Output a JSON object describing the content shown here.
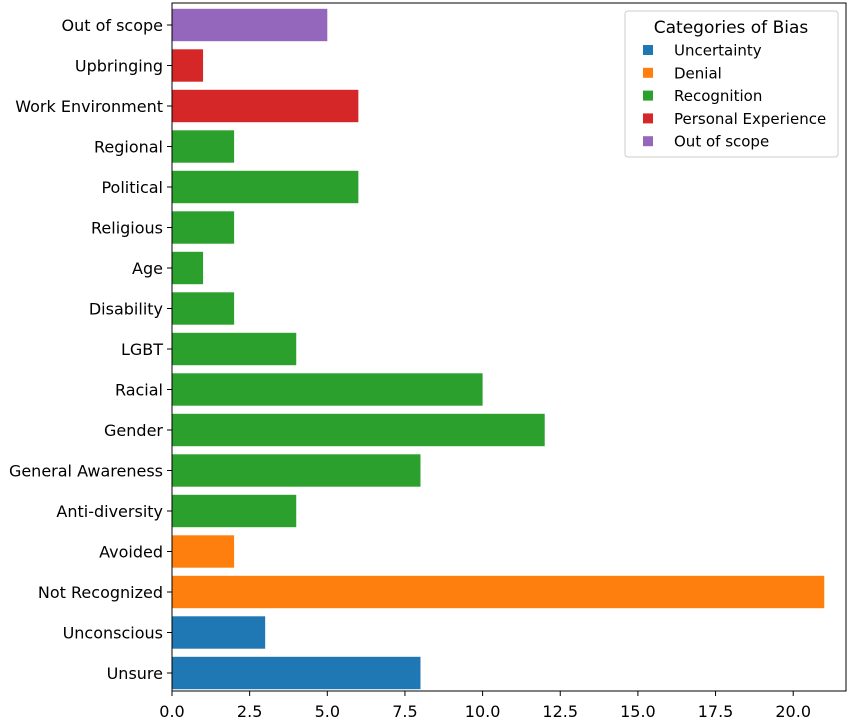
{
  "chart_data": {
    "type": "bar",
    "orientation": "horizontal",
    "categories": [
      "Unsure",
      "Unconscious",
      "Not Recognized",
      "Avoided",
      "Anti-diversity",
      "General Awareness",
      "Gender",
      "Racial",
      "LGBT",
      "Disability",
      "Age",
      "Religious",
      "Political",
      "Regional",
      "Work Environment",
      "Upbringing",
      "Out of scope"
    ],
    "values": [
      8,
      3,
      21,
      2,
      4,
      8,
      12,
      10,
      4,
      2,
      1,
      2,
      6,
      2,
      6,
      1,
      5
    ],
    "bar_groups": [
      "Uncertainty",
      "Uncertainty",
      "Denial",
      "Denial",
      "Recognition",
      "Recognition",
      "Recognition",
      "Recognition",
      "Recognition",
      "Recognition",
      "Recognition",
      "Recognition",
      "Recognition",
      "Recognition",
      "Personal Experience",
      "Personal Experience",
      "Out of scope"
    ],
    "xlim": [
      0,
      21.7
    ],
    "xticks": [
      "0.0",
      "2.5",
      "5.0",
      "7.5",
      "10.0",
      "12.5",
      "15.0",
      "17.5",
      "20.0"
    ],
    "xlabel": "",
    "ylabel": "",
    "title": "",
    "grid": false,
    "legend": {
      "title": "Categories of Bias",
      "placement": "top-right",
      "entries": [
        {
          "name": "Uncertainty",
          "color": "#1f77b4"
        },
        {
          "name": "Denial",
          "color": "#ff7f0e"
        },
        {
          "name": "Recognition",
          "color": "#2ca02c"
        },
        {
          "name": "Personal Experience",
          "color": "#d62728"
        },
        {
          "name": "Out of scope",
          "color": "#9467bd"
        }
      ]
    }
  }
}
